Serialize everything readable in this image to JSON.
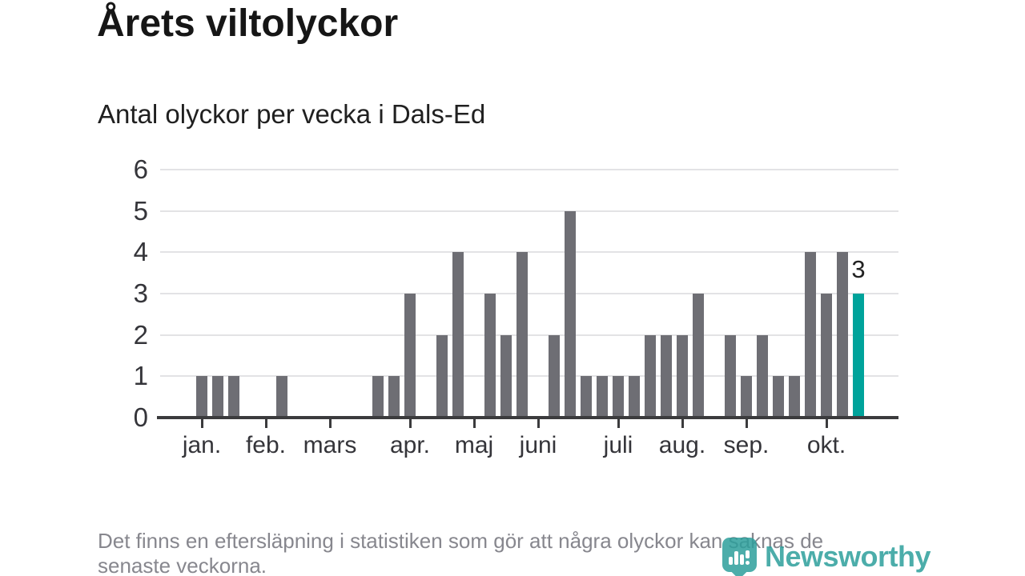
{
  "header": {
    "title": "Årets viltolyckor",
    "subtitle": "Antal olyckor per vecka i Dals-Ed"
  },
  "chart_data": {
    "type": "bar",
    "title": "Årets viltolyckor",
    "subtitle": "Antal olyckor per vecka i Dals-Ed",
    "x_description": "veckor under året (vecka 1–42)",
    "values": [
      1,
      1,
      1,
      0,
      0,
      1,
      0,
      0,
      0,
      0,
      0,
      1,
      1,
      3,
      0,
      2,
      4,
      0,
      3,
      2,
      4,
      0,
      2,
      5,
      1,
      1,
      1,
      1,
      2,
      2,
      2,
      3,
      0,
      2,
      1,
      2,
      1,
      1,
      4,
      3,
      4,
      3
    ],
    "highlight": {
      "index": 41,
      "value": 3,
      "label": "3"
    },
    "month_ticks": [
      {
        "label": "jan.",
        "week": 1
      },
      {
        "label": "feb.",
        "week": 5
      },
      {
        "label": "mars",
        "week": 9
      },
      {
        "label": "apr.",
        "week": 14
      },
      {
        "label": "maj",
        "week": 18
      },
      {
        "label": "juni",
        "week": 22
      },
      {
        "label": "juli",
        "week": 27
      },
      {
        "label": "aug.",
        "week": 31
      },
      {
        "label": "sep.",
        "week": 35
      },
      {
        "label": "okt.",
        "week": 40
      }
    ],
    "y_ticks": [
      0,
      1,
      2,
      3,
      4,
      5,
      6
    ],
    "ylim": [
      0,
      6
    ],
    "grid": "horizontal",
    "legend": "none",
    "colors": {
      "bar": "#6e6e74",
      "highlight": "#00a39b",
      "gridline": "#e3e3e5",
      "axis": "#3b3b3d"
    }
  },
  "footer": {
    "line1": "Det finns en eftersläpning i statistiken som gör att några olyckor kan saknas de",
    "line2": "senaste veckorna."
  },
  "logo": {
    "wordmark": "Newsworthy",
    "color": "#2d9f9c"
  }
}
